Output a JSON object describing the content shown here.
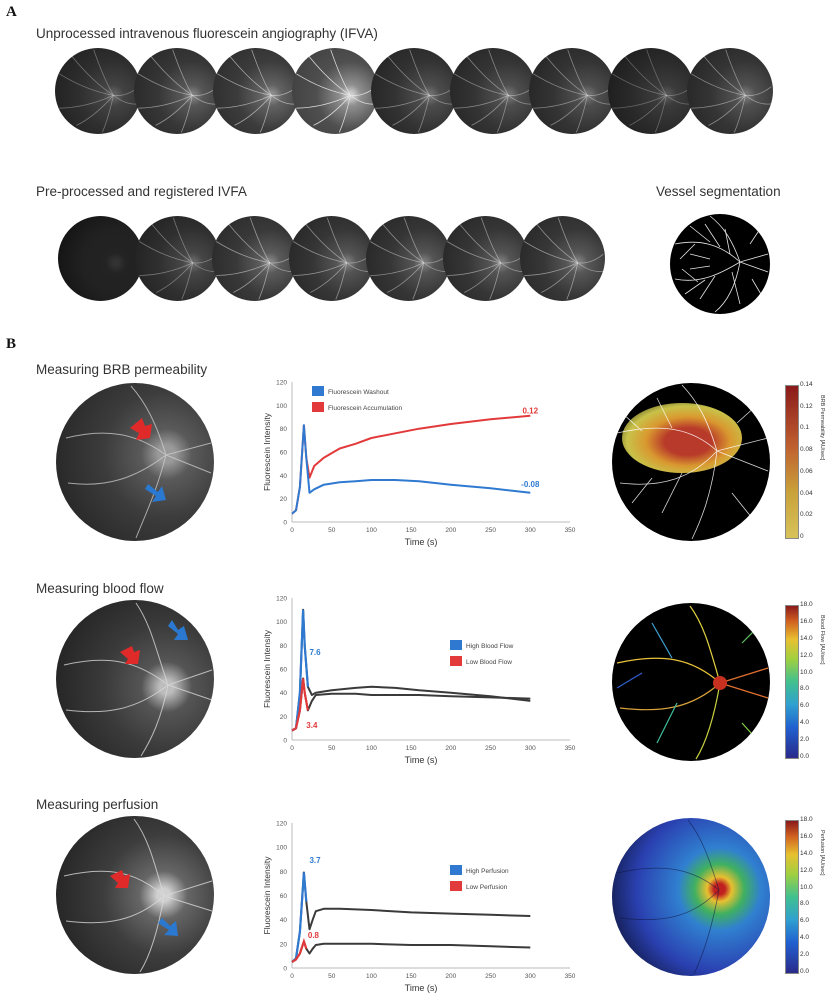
{
  "panel_a": {
    "letter": "A",
    "row1_title": "Unprocessed intravenous fluorescein angiography (IFVA)",
    "row2_title": "Pre-processed and registered IVFA",
    "segmentation_title": "Vessel segmentation"
  },
  "panel_b": {
    "letter": "B",
    "rows": [
      {
        "title": "Measuring BRB permeability",
        "colorbar_title": "BRB Permeability [AU/sec]",
        "colorbar_ticks": [
          "0.14",
          "0.12",
          "0.1",
          "0.08",
          "0.06",
          "0.04",
          "0.02",
          "0"
        ]
      },
      {
        "title": "Measuring blood flow",
        "colorbar_title": "Blood Flow [AU/sec]",
        "colorbar_ticks": [
          "18.0",
          "16.0",
          "14.0",
          "12.0",
          "10.0",
          "8.0",
          "6.0",
          "4.0",
          "2.0",
          "0.0"
        ]
      },
      {
        "title": "Measuring perfusion",
        "colorbar_title": "Perfusion [AU/sec]",
        "colorbar_ticks": [
          "18.0",
          "16.0",
          "14.0",
          "12.0",
          "10.0",
          "8.0",
          "6.0",
          "4.0",
          "2.0",
          "0.0"
        ]
      }
    ]
  },
  "colors": {
    "blue": "#2f7ad0",
    "red": "#e23a3a",
    "curve": "#3a3a3a"
  },
  "chart_data": [
    {
      "type": "line",
      "xlabel": "Time (s)",
      "ylabel": "Fluorescein Intensity",
      "xlim": [
        0,
        350
      ],
      "ylim": [
        0,
        120
      ],
      "xticks": [
        0,
        50,
        100,
        150,
        200,
        250,
        300,
        350
      ],
      "yticks": [
        0,
        20,
        40,
        60,
        80,
        100,
        120
      ],
      "legend": [
        {
          "label": "Fluorescein Washout",
          "color": "#2f7ad0"
        },
        {
          "label": "Fluorescein Accumulation",
          "color": "#e23a3a"
        }
      ],
      "legend_position": "top-left",
      "annotations": [
        {
          "text": "0.12",
          "color": "#e23a3a",
          "x": 300,
          "y": 93
        },
        {
          "text": "-0.08",
          "color": "#2f7ad0",
          "x": 300,
          "y": 30
        }
      ],
      "series": [
        {
          "color": "#e23a3a",
          "x": [
            0,
            5,
            10,
            15,
            18,
            22,
            28,
            40,
            60,
            80,
            100,
            130,
            160,
            200,
            250,
            300
          ],
          "y": [
            7,
            10,
            30,
            83,
            55,
            38,
            48,
            55,
            63,
            67,
            72,
            76,
            80,
            84,
            88,
            91
          ]
        },
        {
          "color": "#2f7ad0",
          "x": [
            0,
            5,
            10,
            15,
            18,
            22,
            28,
            40,
            60,
            80,
            100,
            130,
            160,
            200,
            250,
            300
          ],
          "y": [
            7,
            10,
            30,
            83,
            55,
            25,
            28,
            32,
            34,
            35,
            36,
            36,
            35,
            32,
            29,
            25
          ]
        }
      ]
    },
    {
      "type": "line",
      "xlabel": "Time (s)",
      "ylabel": "Fluorescein Intensity",
      "xlim": [
        0,
        350
      ],
      "ylim": [
        0,
        120
      ],
      "xticks": [
        0,
        50,
        100,
        150,
        200,
        250,
        300,
        350
      ],
      "yticks": [
        0,
        20,
        40,
        60,
        80,
        100,
        120
      ],
      "legend": [
        {
          "label": "High Blood Flow",
          "color": "#2f7ad0"
        },
        {
          "label": "Low Blood Flow",
          "color": "#e23a3a"
        }
      ],
      "legend_position": "right",
      "annotations": [
        {
          "text": "7.6",
          "color": "#2f7ad0",
          "x": 22,
          "y": 72
        },
        {
          "text": "3.4",
          "color": "#e23a3a",
          "x": 18,
          "y": 10
        }
      ],
      "series": [
        {
          "color": "#2f7ad0",
          "x": [
            0,
            5,
            10,
            14,
            16,
            20,
            25,
            30,
            50,
            80,
            100,
            130,
            160,
            200,
            250,
            300
          ],
          "y": [
            8,
            10,
            40,
            110,
            80,
            45,
            38,
            40,
            42,
            44,
            45,
            44,
            42,
            40,
            37,
            33
          ]
        },
        {
          "color": "#e23a3a",
          "x": [
            0,
            5,
            10,
            14,
            16,
            20,
            25,
            30,
            50,
            80,
            100,
            130,
            160,
            200,
            250,
            300
          ],
          "y": [
            8,
            10,
            25,
            52,
            40,
            25,
            33,
            38,
            39,
            39,
            38,
            38,
            38,
            37,
            36,
            35
          ]
        }
      ]
    },
    {
      "type": "line",
      "xlabel": "Time (s)",
      "ylabel": "Fluorescein Intensity",
      "xlim": [
        0,
        350
      ],
      "ylim": [
        0,
        120
      ],
      "xticks": [
        0,
        50,
        100,
        150,
        200,
        250,
        300,
        350
      ],
      "yticks": [
        0,
        20,
        40,
        60,
        80,
        100,
        120
      ],
      "legend": [
        {
          "label": "High Perfusion",
          "color": "#2f7ad0"
        },
        {
          "label": "Low Perfusion",
          "color": "#e23a3a"
        }
      ],
      "legend_position": "right",
      "annotations": [
        {
          "text": "3.7",
          "color": "#2f7ad0",
          "x": 22,
          "y": 87
        },
        {
          "text": "0.8",
          "color": "#e23a3a",
          "x": 20,
          "y": 25
        }
      ],
      "series": [
        {
          "color": "#2f7ad0",
          "x": [
            0,
            5,
            10,
            15,
            18,
            22,
            26,
            30,
            40,
            60,
            100,
            150,
            200,
            250,
            300
          ],
          "y": [
            5,
            8,
            30,
            79,
            55,
            32,
            40,
            47,
            49,
            49,
            48,
            46,
            45,
            44,
            43
          ]
        },
        {
          "color": "#e23a3a",
          "x": [
            0,
            5,
            10,
            15,
            18,
            22,
            26,
            30,
            40,
            60,
            100,
            150,
            200,
            250,
            300
          ],
          "y": [
            5,
            7,
            12,
            22,
            16,
            12,
            16,
            19,
            20,
            20,
            20,
            19,
            19,
            18,
            17
          ]
        }
      ]
    }
  ]
}
